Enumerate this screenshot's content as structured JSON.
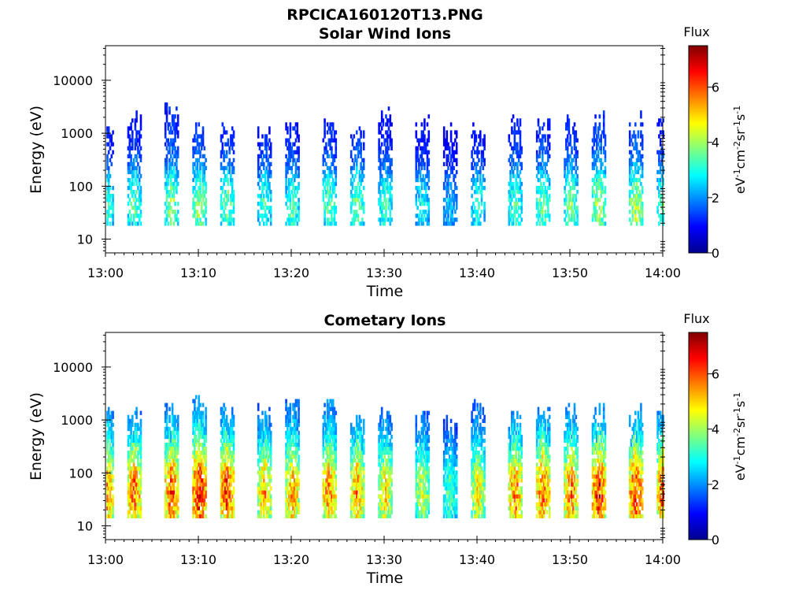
{
  "figure_title": "RPCICA160120T13.PNG",
  "chart_data": [
    {
      "type": "heatmap",
      "title": "Solar Wind Ions",
      "xlabel": "Time",
      "ylabel": "Energy (eV)",
      "x_ticks": [
        "13:00",
        "13:10",
        "13:20",
        "13:30",
        "13:40",
        "13:50",
        "14:00"
      ],
      "xlim": [
        "13:00",
        "14:00"
      ],
      "y_scale": "log",
      "y_ticks": [
        "10",
        "100",
        "1000",
        "10000"
      ],
      "ylim": [
        5.5,
        45000
      ],
      "colorbar": {
        "label": "Flux",
        "unit": "eV-1cm-2sr-1s-1",
        "range": [
          0,
          7.5
        ],
        "ticks": [
          "0",
          "2",
          "4",
          "6"
        ],
        "colormap": "jet"
      },
      "sweep_times": [
        "13:00",
        "13:03",
        "13:07",
        "13:10",
        "13:13",
        "13:17",
        "13:20",
        "13:24",
        "13:27",
        "13:30",
        "13:34",
        "13:37",
        "13:40",
        "13:44",
        "13:47",
        "13:50",
        "13:53",
        "13:57",
        "14:00"
      ],
      "sweep_peak_flux": [
        3.6,
        3.8,
        4.3,
        4.3,
        4.0,
        3.6,
        3.7,
        3.9,
        4.0,
        3.6,
        3.2,
        2.6,
        3.4,
        3.8,
        4.0,
        4.1,
        4.6,
        4.6,
        3.8
      ],
      "sweep_max_energy_eV": [
        1500,
        2500,
        4000,
        1800,
        2000,
        1600,
        1800,
        1800,
        2000,
        3000,
        2000,
        1600,
        1600,
        2200,
        1800,
        2000,
        2500,
        2500,
        2500
      ],
      "peak_energy_eV": 40,
      "min_energy_eV": 18
    },
    {
      "type": "heatmap",
      "title": "Cometary Ions",
      "xlabel": "Time",
      "ylabel": "Energy (eV)",
      "x_ticks": [
        "13:00",
        "13:10",
        "13:20",
        "13:30",
        "13:40",
        "13:50",
        "14:00"
      ],
      "xlim": [
        "13:00",
        "14:00"
      ],
      "y_scale": "log",
      "y_ticks": [
        "10",
        "100",
        "1000",
        "10000"
      ],
      "ylim": [
        5.5,
        45000
      ],
      "colorbar": {
        "label": "Flux",
        "unit": "eV-1cm-2sr-1s-1",
        "range": [
          0,
          7.5
        ],
        "ticks": [
          "0",
          "2",
          "4",
          "6"
        ],
        "colormap": "jet"
      },
      "sweep_times": [
        "13:00",
        "13:03",
        "13:07",
        "13:10",
        "13:13",
        "13:17",
        "13:20",
        "13:24",
        "13:27",
        "13:30",
        "13:34",
        "13:37",
        "13:40",
        "13:44",
        "13:47",
        "13:50",
        "13:53",
        "13:57",
        "14:00"
      ],
      "sweep_peak_flux": [
        6.2,
        6.4,
        6.6,
        7.2,
        6.8,
        5.8,
        6.0,
        6.2,
        6.0,
        5.4,
        4.8,
        3.8,
        5.2,
        6.2,
        6.4,
        6.3,
        7.0,
        6.8,
        6.6
      ],
      "sweep_max_energy_eV": [
        2000,
        1800,
        2000,
        3000,
        2200,
        2000,
        2500,
        2500,
        1800,
        1600,
        1500,
        1200,
        2200,
        1500,
        1800,
        2000,
        2000,
        1800,
        1600
      ],
      "peak_energy_eV": 40,
      "min_energy_eV": 14
    }
  ]
}
